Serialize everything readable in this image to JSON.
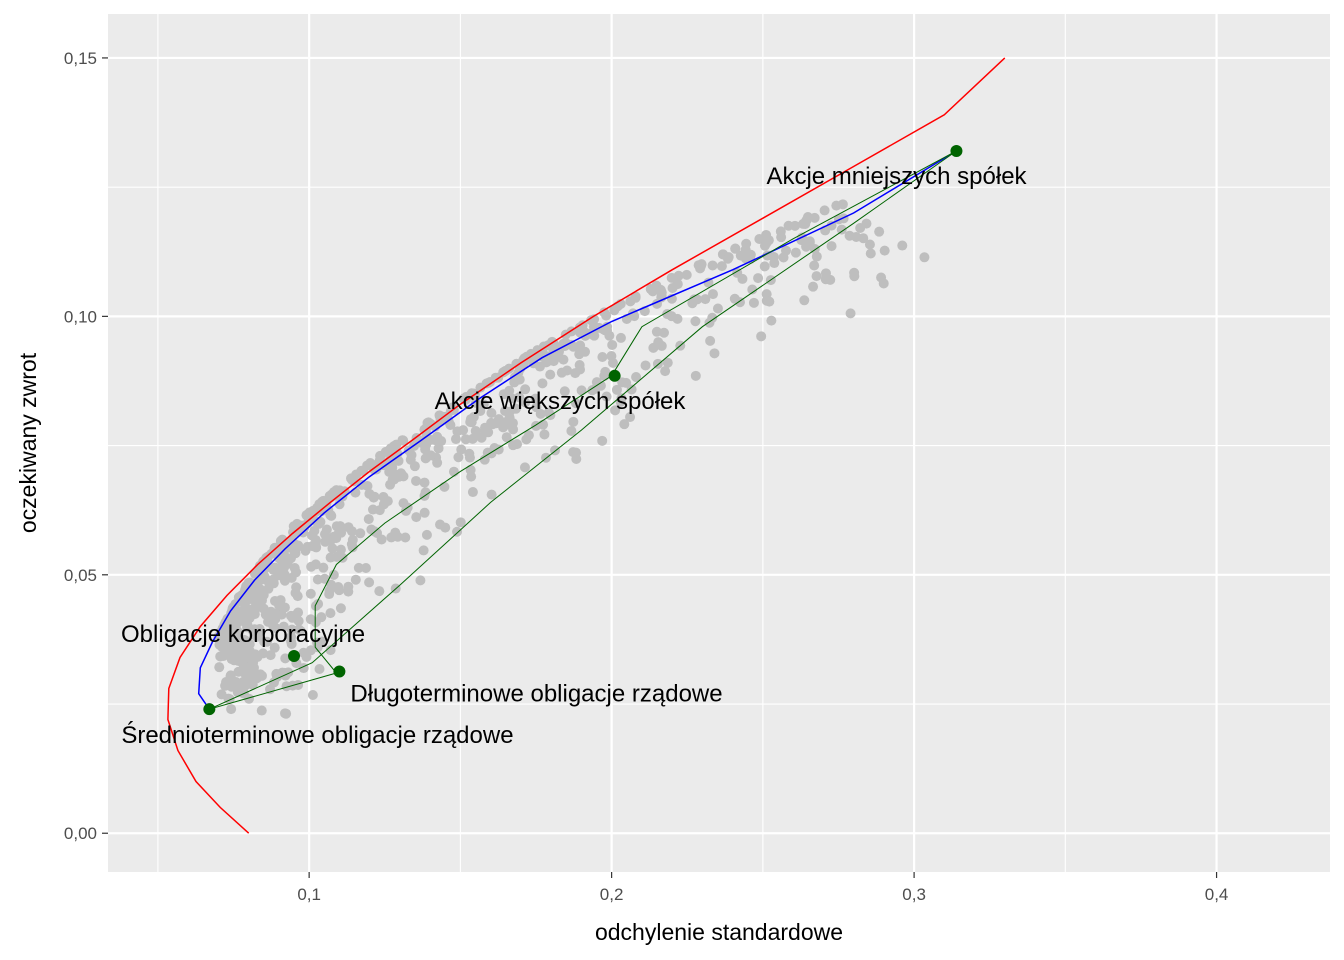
{
  "chart_data": {
    "type": "scatter",
    "xlabel": "odchylenie standardowe",
    "ylabel": "oczekiwany zwrot",
    "xlim": [
      0.0335,
      0.4375
    ],
    "ylim": [
      -0.0075,
      0.1585
    ],
    "x_ticks": [
      {
        "value": 0.1,
        "label": "0,1"
      },
      {
        "value": 0.2,
        "label": "0,2"
      },
      {
        "value": 0.3,
        "label": "0,3"
      },
      {
        "value": 0.4,
        "label": "0,4"
      }
    ],
    "y_ticks": [
      {
        "value": 0.0,
        "label": "0,00"
      },
      {
        "value": 0.05,
        "label": "0,05"
      },
      {
        "value": 0.1,
        "label": "0,10"
      },
      {
        "value": 0.15,
        "label": "0,15"
      }
    ],
    "panel_background": "#ebebeb",
    "grid_color": "#ffffff",
    "point_cloud_color": "#bebebe",
    "random_portfolios": {
      "color": "#bebebe",
      "envelope": [
        [
          0.07,
          0.038
        ],
        [
          0.076,
          0.045
        ],
        [
          0.084,
          0.052
        ],
        [
          0.094,
          0.059
        ],
        [
          0.106,
          0.065
        ],
        [
          0.121,
          0.072
        ],
        [
          0.138,
          0.079
        ],
        [
          0.156,
          0.086
        ],
        [
          0.174,
          0.093
        ],
        [
          0.195,
          0.1
        ],
        [
          0.225,
          0.109
        ],
        [
          0.252,
          0.116
        ],
        [
          0.276,
          0.122
        ]
      ]
    },
    "series": [
      {
        "kind": "min-variance-frontier",
        "color": "#ff0000",
        "points": [
          [
            0.08,
            0.0
          ],
          [
            0.0706,
            0.005
          ],
          [
            0.0626,
            0.01
          ],
          [
            0.0566,
            0.016
          ],
          [
            0.0533,
            0.022
          ],
          [
            0.0536,
            0.028
          ],
          [
            0.0573,
            0.034
          ],
          [
            0.064,
            0.04
          ],
          [
            0.0728,
            0.046
          ],
          [
            0.083,
            0.052
          ],
          [
            0.0945,
            0.058
          ],
          [
            0.107,
            0.064
          ],
          [
            0.12,
            0.07
          ],
          [
            0.134,
            0.076
          ],
          [
            0.15,
            0.083
          ],
          [
            0.17,
            0.091
          ],
          [
            0.194,
            0.1
          ],
          [
            0.22,
            0.109
          ],
          [
            0.25,
            0.119
          ],
          [
            0.28,
            0.129
          ],
          [
            0.31,
            0.139
          ],
          [
            0.33,
            0.15
          ]
        ]
      },
      {
        "kind": "constrained-frontier",
        "color": "#0000ff",
        "points": [
          [
            0.067,
            0.024
          ],
          [
            0.0635,
            0.027
          ],
          [
            0.064,
            0.032
          ],
          [
            0.068,
            0.037
          ],
          [
            0.074,
            0.043
          ],
          [
            0.082,
            0.049
          ],
          [
            0.092,
            0.055
          ],
          [
            0.105,
            0.062
          ],
          [
            0.12,
            0.069
          ],
          [
            0.137,
            0.076
          ],
          [
            0.156,
            0.084
          ],
          [
            0.177,
            0.092
          ],
          [
            0.2,
            0.099
          ],
          [
            0.24,
            0.109
          ],
          [
            0.28,
            0.12
          ],
          [
            0.314,
            0.132
          ]
        ]
      },
      {
        "kind": "two-asset-curves",
        "color": "#006400",
        "segments": [
          [
            [
              0.067,
              0.024
            ],
            [
              0.109,
              0.031
            ]
          ],
          [
            [
              0.109,
              0.031
            ],
            [
              0.102,
              0.036
            ],
            [
              0.102,
              0.044
            ],
            [
              0.109,
              0.052
            ],
            [
              0.125,
              0.06
            ],
            [
              0.15,
              0.07
            ],
            [
              0.175,
              0.079
            ],
            [
              0.2,
              0.0885
            ]
          ],
          [
            [
              0.2,
              0.0885
            ],
            [
              0.21,
              0.098
            ],
            [
              0.26,
              0.115
            ],
            [
              0.314,
              0.132
            ]
          ],
          [
            [
              0.067,
              0.024
            ],
            [
              0.101,
              0.033
            ],
            [
              0.13,
              0.048
            ],
            [
              0.16,
              0.064
            ],
            [
              0.19,
              0.078
            ],
            [
              0.23,
              0.098
            ],
            [
              0.28,
              0.118
            ],
            [
              0.314,
              0.132
            ]
          ]
        ]
      }
    ],
    "assets": [
      {
        "name": "Akcje mniejszych spółek",
        "x": 0.314,
        "y": 0.132,
        "anchor": "end"
      },
      {
        "name": "Akcje większych spółek",
        "x": 0.201,
        "y": 0.0885,
        "anchor": "end"
      },
      {
        "name": "Obligacje korporacyjne",
        "x": 0.095,
        "y": 0.0343,
        "anchor": "start"
      },
      {
        "name": "Długoterminowe obligacje rządowe",
        "x": 0.11,
        "y": 0.0313,
        "anchor": "start"
      },
      {
        "name": "Średnioterminowe obligacje rządowe",
        "x": 0.067,
        "y": 0.024,
        "anchor": "start"
      }
    ],
    "asset_point_color": "#006400"
  }
}
